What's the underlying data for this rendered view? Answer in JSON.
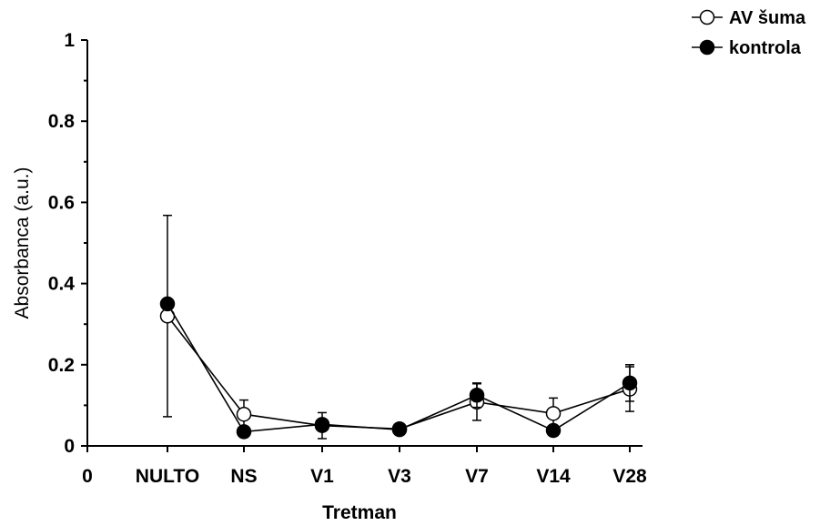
{
  "chart_data": {
    "type": "line",
    "title": "",
    "xlabel": "Tretman",
    "ylabel": "Absorbanca (a.u.)",
    "ylim": [
      0,
      1
    ],
    "yticks": [
      "0",
      "0.2",
      "0.4",
      "0.6",
      "0.8",
      "1"
    ],
    "x_origin_label": "0",
    "categories": [
      "NULTO",
      "NS",
      "V1",
      "V3",
      "V7",
      "V14",
      "V28"
    ],
    "legend_position": "top-right",
    "grid": false,
    "series": [
      {
        "name": "AV šuma",
        "marker": "open-circle",
        "values": [
          0.32,
          0.078,
          0.05,
          0.042,
          0.108,
          0.08,
          0.14
        ],
        "error": [
          0.248,
          0.035,
          0.032,
          0.01,
          0.045,
          0.038,
          0.055
        ]
      },
      {
        "name": "kontrola",
        "marker": "filled-circle",
        "values": [
          0.35,
          0.035,
          0.053,
          0.04,
          0.125,
          0.038,
          0.155
        ],
        "error": [
          0.0,
          0.0,
          0.0,
          0.0,
          0.03,
          0.0,
          0.045
        ]
      }
    ]
  }
}
